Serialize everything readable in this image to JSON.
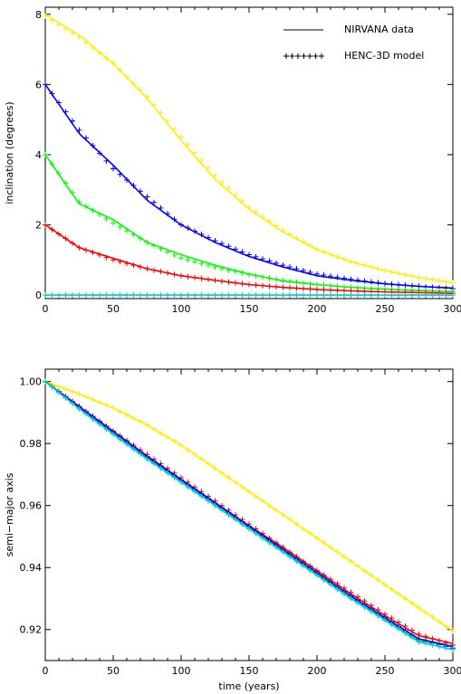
{
  "chart_data": [
    {
      "type": "line",
      "panel": "inclination",
      "xlabel": "",
      "ylabel": "inclination (degrees)",
      "xlim": [
        0,
        300
      ],
      "ylim": [
        -0.1,
        8.2
      ],
      "xticks": [
        "0",
        "50",
        "100",
        "150",
        "200",
        "250",
        "300"
      ],
      "yticks": [
        "0",
        "2",
        "4",
        "6",
        "8"
      ],
      "xtick_values": [
        0,
        50,
        100,
        150,
        200,
        250,
        300
      ],
      "ytick_values": [
        0,
        2,
        4,
        6,
        8
      ],
      "legend": {
        "placement": "top-right",
        "entries": [
          {
            "label": "NIRVANA data",
            "style": "line"
          },
          {
            "label": "HENC-3D model",
            "style": "plus"
          }
        ]
      },
      "series": [
        {
          "color": "#ffee00",
          "x": [
            0,
            25,
            50,
            75,
            100,
            125,
            150,
            175,
            200,
            225,
            250,
            275,
            300
          ],
          "values": [
            8.0,
            7.4,
            6.6,
            5.6,
            4.4,
            3.3,
            2.45,
            1.8,
            1.3,
            0.95,
            0.7,
            0.5,
            0.35
          ],
          "model": [
            7.95,
            7.35,
            6.6,
            5.65,
            4.5,
            3.4,
            2.5,
            1.85,
            1.3,
            0.95,
            0.7,
            0.5,
            0.35
          ]
        },
        {
          "color": "#0000ff",
          "x": [
            0,
            25,
            50,
            75,
            100,
            125,
            150,
            175,
            200,
            225,
            250,
            275,
            300
          ],
          "values": [
            6.0,
            4.6,
            3.7,
            2.7,
            2.0,
            1.5,
            1.1,
            0.8,
            0.55,
            0.42,
            0.32,
            0.25,
            0.2
          ],
          "model": [
            6.0,
            4.7,
            3.6,
            2.8,
            2.0,
            1.55,
            1.15,
            0.85,
            0.6,
            0.45,
            0.33,
            0.25,
            0.18
          ]
        },
        {
          "color": "#00ff00",
          "x": [
            0,
            25,
            50,
            75,
            100,
            125,
            150,
            175,
            200,
            225,
            250,
            275,
            300
          ],
          "values": [
            4.0,
            2.6,
            2.15,
            1.5,
            1.15,
            0.85,
            0.6,
            0.4,
            0.3,
            0.22,
            0.17,
            0.13,
            0.1
          ],
          "model": [
            4.0,
            2.65,
            2.05,
            1.5,
            1.05,
            0.8,
            0.58,
            0.42,
            0.3,
            0.22,
            0.16,
            0.12,
            0.1
          ]
        },
        {
          "color": "#ff0000",
          "x": [
            0,
            25,
            50,
            75,
            100,
            125,
            150,
            175,
            200,
            225,
            250,
            275,
            300
          ],
          "values": [
            2.0,
            1.35,
            1.05,
            0.75,
            0.55,
            0.42,
            0.3,
            0.22,
            0.16,
            0.12,
            0.09,
            0.07,
            0.05
          ],
          "model": [
            2.0,
            1.35,
            1.0,
            0.75,
            0.55,
            0.42,
            0.3,
            0.22,
            0.16,
            0.12,
            0.09,
            0.07,
            0.05
          ]
        },
        {
          "color": "#00cccc",
          "x": [
            0,
            25,
            50,
            75,
            100,
            125,
            150,
            175,
            200,
            225,
            250,
            275,
            300
          ],
          "values": [
            0,
            0,
            0,
            0,
            0,
            0,
            0,
            0,
            0,
            0,
            0,
            0,
            0
          ],
          "model": [
            0,
            0,
            0,
            0,
            0,
            0,
            0,
            0,
            0,
            0,
            0,
            0,
            0
          ]
        }
      ]
    },
    {
      "type": "line",
      "panel": "semi-major-axis",
      "xlabel": "time (years)",
      "ylabel": "semi−major axis",
      "xlim": [
        0,
        300
      ],
      "ylim": [
        0.91,
        1.004
      ],
      "xticks": [
        "0",
        "50",
        "100",
        "150",
        "200",
        "250",
        "300"
      ],
      "yticks": [
        "0.92",
        "0.94",
        "0.96",
        "0.98",
        "1.00"
      ],
      "xtick_values": [
        0,
        50,
        100,
        150,
        200,
        250,
        300
      ],
      "ytick_values": [
        0.92,
        0.94,
        0.96,
        0.98,
        1.0
      ],
      "series": [
        {
          "color": "#ffee00",
          "x": [
            0,
            25,
            50,
            75,
            100,
            125,
            150,
            175,
            200,
            225,
            250,
            275,
            300
          ],
          "values": [
            1.0,
            0.996,
            0.9915,
            0.986,
            0.9795,
            0.972,
            0.9645,
            0.957,
            0.9495,
            0.942,
            0.9345,
            0.927,
            0.9195
          ],
          "model": [
            1.0,
            0.996,
            0.9915,
            0.986,
            0.9795,
            0.972,
            0.9645,
            0.957,
            0.9495,
            0.942,
            0.9345,
            0.927,
            0.9195
          ]
        },
        {
          "color": "#ff0000",
          "x": [
            0,
            25,
            50,
            75,
            100,
            125,
            150,
            175,
            200,
            225,
            250,
            275,
            300
          ],
          "values": [
            1.0,
            0.992,
            0.984,
            0.976,
            0.9685,
            0.961,
            0.9535,
            0.9465,
            0.939,
            0.9315,
            0.9245,
            0.918,
            0.9155
          ],
          "model": [
            1.0,
            0.992,
            0.984,
            0.9765,
            0.969,
            0.9615,
            0.954,
            0.9465,
            0.939,
            0.932,
            0.925,
            0.9185,
            0.915
          ]
        },
        {
          "color": "#00ff00",
          "x": [
            0,
            25,
            50,
            75,
            100,
            125,
            150,
            175,
            200,
            225,
            250,
            275,
            300
          ],
          "values": [
            1.0,
            0.9915,
            0.9835,
            0.9755,
            0.968,
            0.9605,
            0.953,
            0.9455,
            0.938,
            0.9305,
            0.9235,
            0.9165,
            0.9145
          ],
          "model": [
            1.0,
            0.9915,
            0.9835,
            0.9755,
            0.968,
            0.9605,
            0.953,
            0.9455,
            0.938,
            0.9305,
            0.9235,
            0.9165,
            0.914
          ]
        },
        {
          "color": "#0000ff",
          "x": [
            0,
            25,
            50,
            75,
            100,
            125,
            150,
            175,
            200,
            225,
            250,
            275,
            300
          ],
          "values": [
            1.0,
            0.9918,
            0.9838,
            0.9758,
            0.9683,
            0.9608,
            0.9533,
            0.9458,
            0.9383,
            0.9308,
            0.9238,
            0.917,
            0.9145
          ],
          "model": [
            1.0,
            0.9918,
            0.9838,
            0.9758,
            0.9683,
            0.9608,
            0.9533,
            0.9458,
            0.9383,
            0.9308,
            0.9238,
            0.9168,
            0.914
          ]
        },
        {
          "color": "#00cccc",
          "x": [
            0,
            25,
            50,
            75,
            100,
            125,
            150,
            175,
            200,
            225,
            250,
            275,
            300
          ],
          "values": [
            1.0,
            0.9912,
            0.983,
            0.975,
            0.9675,
            0.96,
            0.9525,
            0.945,
            0.9375,
            0.93,
            0.923,
            0.916,
            0.9135
          ],
          "model": [
            1.0,
            0.9912,
            0.983,
            0.975,
            0.9675,
            0.96,
            0.9525,
            0.945,
            0.9375,
            0.93,
            0.923,
            0.916,
            0.9135
          ]
        }
      ]
    }
  ]
}
